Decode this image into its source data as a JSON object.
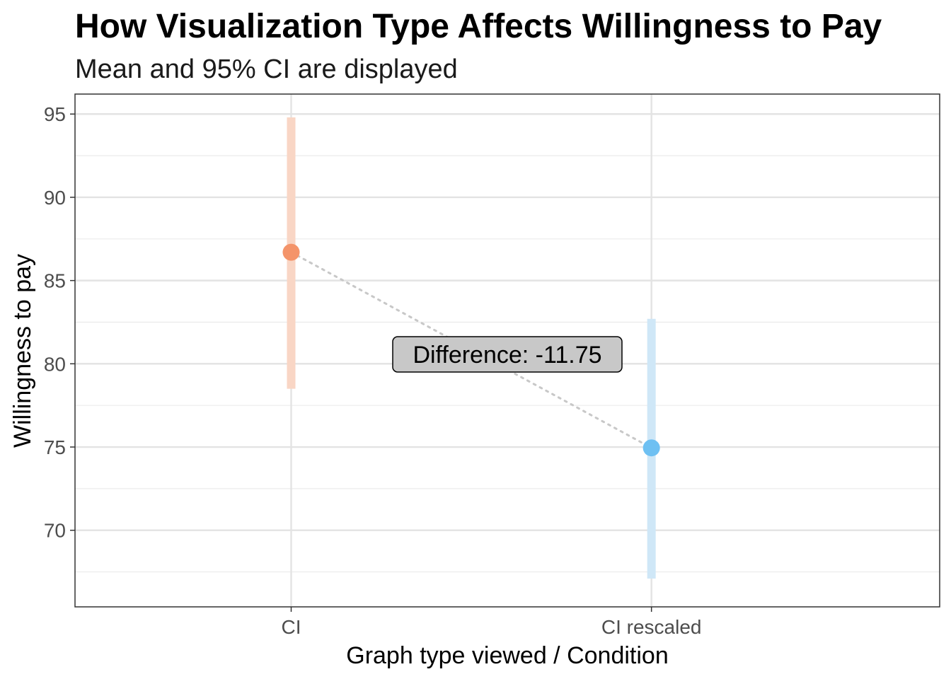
{
  "chart_data": {
    "type": "scatter",
    "title": "How Visualization Type Affects Willingness to Pay",
    "subtitle": "Mean and 95% CI are displayed",
    "xlabel": "Graph type viewed / Condition",
    "ylabel": "Willingness to pay",
    "categories": [
      "CI",
      "CI rescaled"
    ],
    "points": [
      {
        "category": "CI",
        "mean": 86.7,
        "ci_low": 78.5,
        "ci_high": 94.8,
        "color": "#f4946a",
        "ci_color": "#f9d6c5"
      },
      {
        "category": "CI rescaled",
        "mean": 74.95,
        "ci_low": 67.1,
        "ci_high": 82.7,
        "color": "#6ec0f2",
        "ci_color": "#cfe7f7"
      }
    ],
    "yticks": [
      70,
      75,
      80,
      85,
      90,
      95
    ],
    "ylim": [
      65.4,
      96.2
    ],
    "grid": true,
    "annotation": {
      "text": "Difference: -11.75"
    },
    "connector_color": "#c8c8c8"
  }
}
